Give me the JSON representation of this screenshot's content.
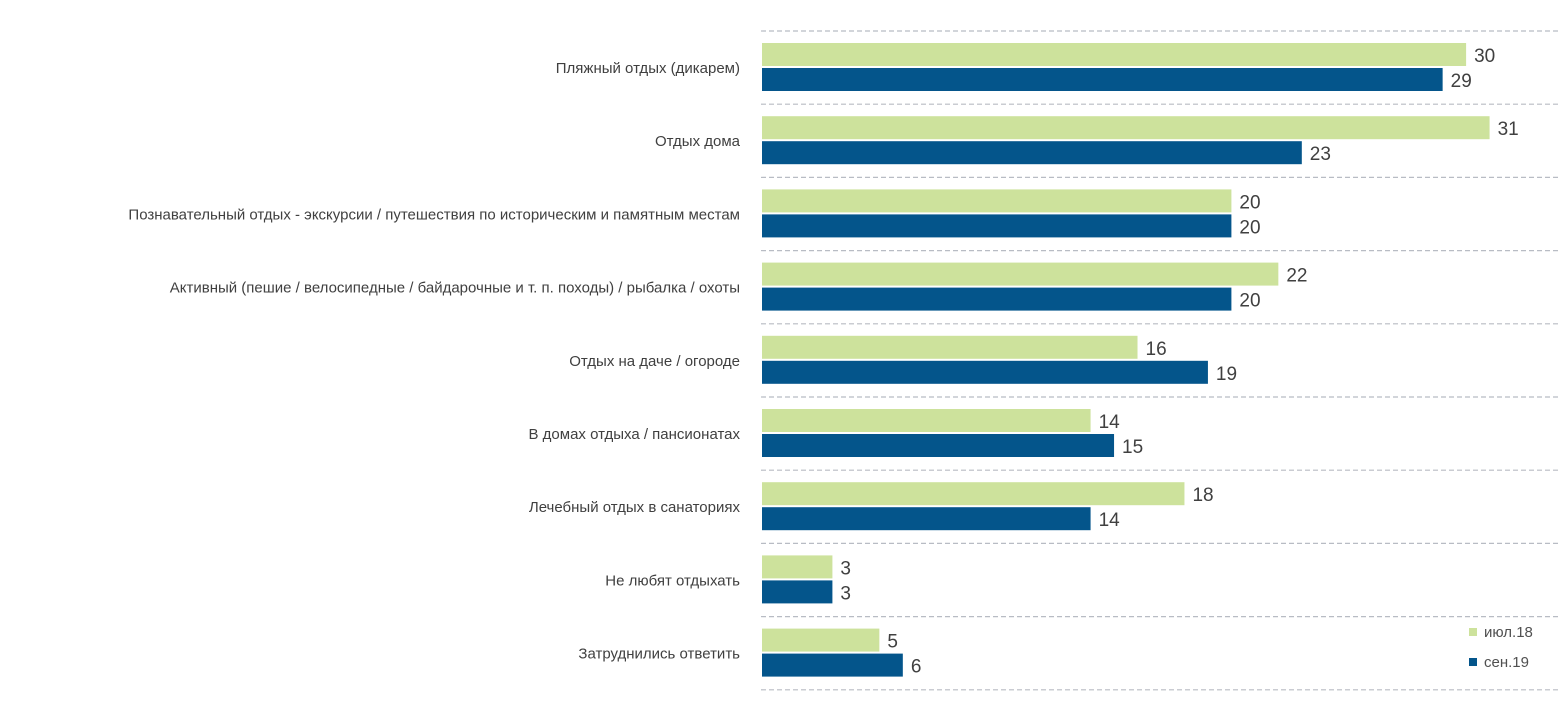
{
  "chart_data": {
    "type": "bar",
    "orientation": "horizontal",
    "categories": [
      "Пляжный отдых (дикарем)",
      "Отдых дома",
      "Познавательный отдых - экскурсии / путешествия по историческим и памятным местам",
      "Активный (пешие / велосипедные / байдарочные и т. п. походы) / рыбалка / охоты",
      "Отдых на даче / огороде",
      "В домах отдыха / пансионатах",
      "Лечебный отдых в санаториях",
      "Не любят отдыхать",
      "Затруднились ответить"
    ],
    "series": [
      {
        "name": "июл.18",
        "color": "#cde29c",
        "values": [
          30,
          31,
          20,
          22,
          16,
          14,
          18,
          3,
          5
        ]
      },
      {
        "name": "сен.19",
        "color": "#04558b",
        "values": [
          29,
          23,
          20,
          20,
          19,
          15,
          14,
          3,
          6
        ]
      }
    ],
    "xlim": [
      0,
      34
    ],
    "grid": "dashed horizontal separators",
    "legend": "bottom-right",
    "data_labels": true
  }
}
